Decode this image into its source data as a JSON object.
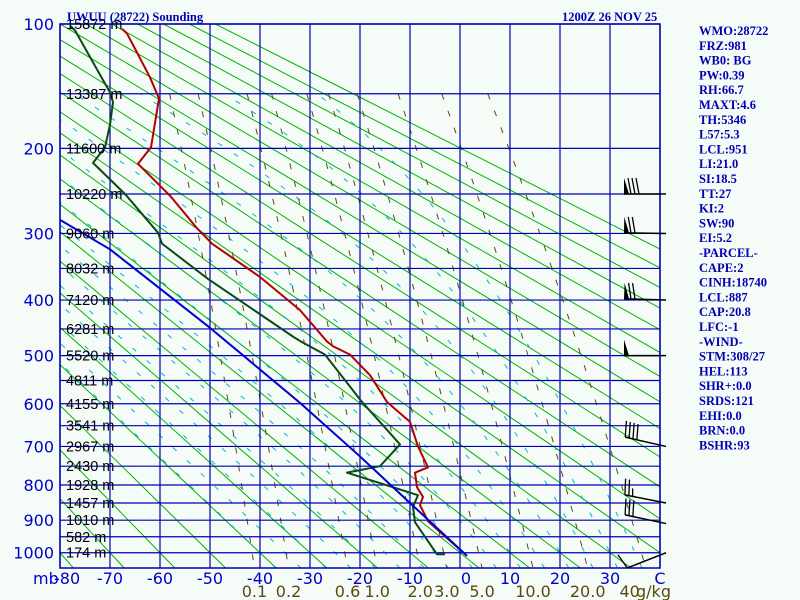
{
  "header": {
    "title": "UWUU (28722) Sounding",
    "datetime": "1200Z 26 NOV 25"
  },
  "indices": [
    "WMO:28722",
    "FRZ:981",
    "WB0: BG",
    "PW:0.39",
    "RH:66.7",
    "MAXT:4.6",
    "TH:5346",
    "L57:5.3",
    "LCL:951",
    "LI:21.0",
    "SI:18.5",
    "TT:27",
    "KI:2",
    "SW:90",
    "EI:5.2",
    "-PARCEL-",
    "CAPE:2",
    "CINH:18740",
    "LCL:887",
    "CAP:20.8",
    "LFC:-1",
    "-WIND-",
    "STM:308/27",
    "HEL:113",
    "SHR+:0.0",
    "SRDS:121",
    "EHI:0.0",
    "BRN:0.0",
    "BSHR:93"
  ],
  "colors": {
    "background": "#f5fbf7",
    "grid": "#0000b4",
    "text": "#0000b4",
    "temperature": "#b40000",
    "dewpoint": "#0a4a14",
    "parcel": "#0000d0",
    "dry_adiabat": "#00b400",
    "moist_adiabat": "#00b4d0",
    "mixing_ratio": "#5a4a10",
    "wind": "#000000"
  },
  "chart_data": {
    "type": "line",
    "title": "UWUU (28722) Sounding",
    "xlabel": "C",
    "ylabel": "mb",
    "xlim": [
      -80,
      40
    ],
    "ylim": [
      1050,
      100
    ],
    "pressure_levels": [
      100,
      200,
      300,
      400,
      500,
      600,
      700,
      800,
      900,
      1000
    ],
    "pressure_unit_label": "mb",
    "height_labels": [
      {
        "p": 100,
        "label": "15872 m"
      },
      {
        "p": 150,
        "label": "13387 m"
      },
      {
        "p": 200,
        "label": "11600 m"
      },
      {
        "p": 250,
        "label": "10220 m"
      },
      {
        "p": 300,
        "label": "9060 m"
      },
      {
        "p": 350,
        "label": "8032 m"
      },
      {
        "p": 400,
        "label": "7120 m"
      },
      {
        "p": 450,
        "label": "6281 m"
      },
      {
        "p": 500,
        "label": "5520 m"
      },
      {
        "p": 550,
        "label": "4811 m"
      },
      {
        "p": 600,
        "label": "4155 m"
      },
      {
        "p": 650,
        "label": "3541 m"
      },
      {
        "p": 700,
        "label": "2967 m"
      },
      {
        "p": 750,
        "label": "2430 m"
      },
      {
        "p": 800,
        "label": "1928 m"
      },
      {
        "p": 850,
        "label": "1457 m"
      },
      {
        "p": 900,
        "label": "1010 m"
      },
      {
        "p": 950,
        "label": "582 m"
      },
      {
        "p": 1000,
        "label": "174 m"
      }
    ],
    "temperature_ticks": [
      -80,
      -70,
      -60,
      -50,
      -40,
      -30,
      -20,
      -10,
      0,
      10,
      20,
      30
    ],
    "temp_unit_label": "C",
    "mixing_ratio_labels": [
      {
        "w": 0.1,
        "label": "0.1"
      },
      {
        "w": 0.2,
        "label": "0.2"
      },
      {
        "w": 0.6,
        "label": "0.6"
      },
      {
        "w": 1.0,
        "label": "1.0"
      },
      {
        "w": 2.0,
        "label": "2.0"
      },
      {
        "w": 3.0,
        "label": "3.0"
      },
      {
        "w": 5.0,
        "label": "5.0"
      },
      {
        "w": 10.0,
        "label": "10.0"
      },
      {
        "w": 20.0,
        "label": "20.0"
      },
      {
        "w": 40,
        "label": "40"
      }
    ],
    "mixing_ratio_unit": "g/kg",
    "series": [
      {
        "name": "temperature",
        "points": [
          [
            103,
            -67.6
          ],
          [
            106,
            -66.6
          ],
          [
            120,
            -64.4
          ],
          [
            137,
            -62
          ],
          [
            154,
            -60.2
          ],
          [
            199,
            -61.8
          ],
          [
            216,
            -64.4
          ],
          [
            252,
            -58
          ],
          [
            293,
            -52.6
          ],
          [
            314,
            -49.6
          ],
          [
            363,
            -40
          ],
          [
            417,
            -32
          ],
          [
            473,
            -26.6
          ],
          [
            482,
            -25.4
          ],
          [
            498,
            -22
          ],
          [
            539,
            -18
          ],
          [
            596,
            -14.6
          ],
          [
            641,
            -10
          ],
          [
            700,
            -8.4
          ],
          [
            753,
            -6.4
          ],
          [
            767,
            -9
          ],
          [
            806,
            -8.6
          ],
          [
            833,
            -7.4
          ],
          [
            856,
            -8
          ],
          [
            903,
            -6.4
          ],
          [
            1010,
            1.4
          ]
        ]
      },
      {
        "name": "dewpoint",
        "points": [
          [
            101,
            -78
          ],
          [
            104,
            -77
          ],
          [
            149,
            -70
          ],
          [
            157,
            -69.4
          ],
          [
            177,
            -70
          ],
          [
            199,
            -71
          ],
          [
            215,
            -73.4
          ],
          [
            250,
            -67
          ],
          [
            299,
            -60.4
          ],
          [
            314,
            -59.6
          ],
          [
            366,
            -50.4
          ],
          [
            464,
            -33.4
          ],
          [
            472,
            -32
          ],
          [
            498,
            -27
          ],
          [
            596,
            -19.6
          ],
          [
            695,
            -12
          ],
          [
            750,
            -16
          ],
          [
            767,
            -22.6
          ],
          [
            828,
            -8.4
          ],
          [
            861,
            -9.4
          ],
          [
            906,
            -9
          ],
          [
            1005,
            -4.6
          ],
          [
            1005,
            -3
          ]
        ]
      },
      {
        "name": "parcel",
        "points": [
          [
            1010,
            1.4
          ],
          [
            850,
            -10
          ],
          [
            725,
            -20
          ],
          [
            598,
            -32
          ],
          [
            448,
            -50
          ],
          [
            322,
            -70
          ],
          [
            282,
            -80
          ]
        ]
      }
    ],
    "winds": [
      {
        "p": 250,
        "dir": 270,
        "kt": 80
      },
      {
        "p": 300,
        "dir": 271,
        "kt": 70
      },
      {
        "p": 400,
        "dir": 272,
        "kt": 70
      },
      {
        "p": 500,
        "dir": 270,
        "kt": 50
      },
      {
        "p": 700,
        "dir": 285,
        "kt": 40
      },
      {
        "p": 850,
        "dir": 283,
        "kt": 25
      },
      {
        "p": 910,
        "dir": 284,
        "kt": 30
      },
      {
        "p": 1000,
        "dir": 245,
        "kt": 10
      }
    ]
  }
}
